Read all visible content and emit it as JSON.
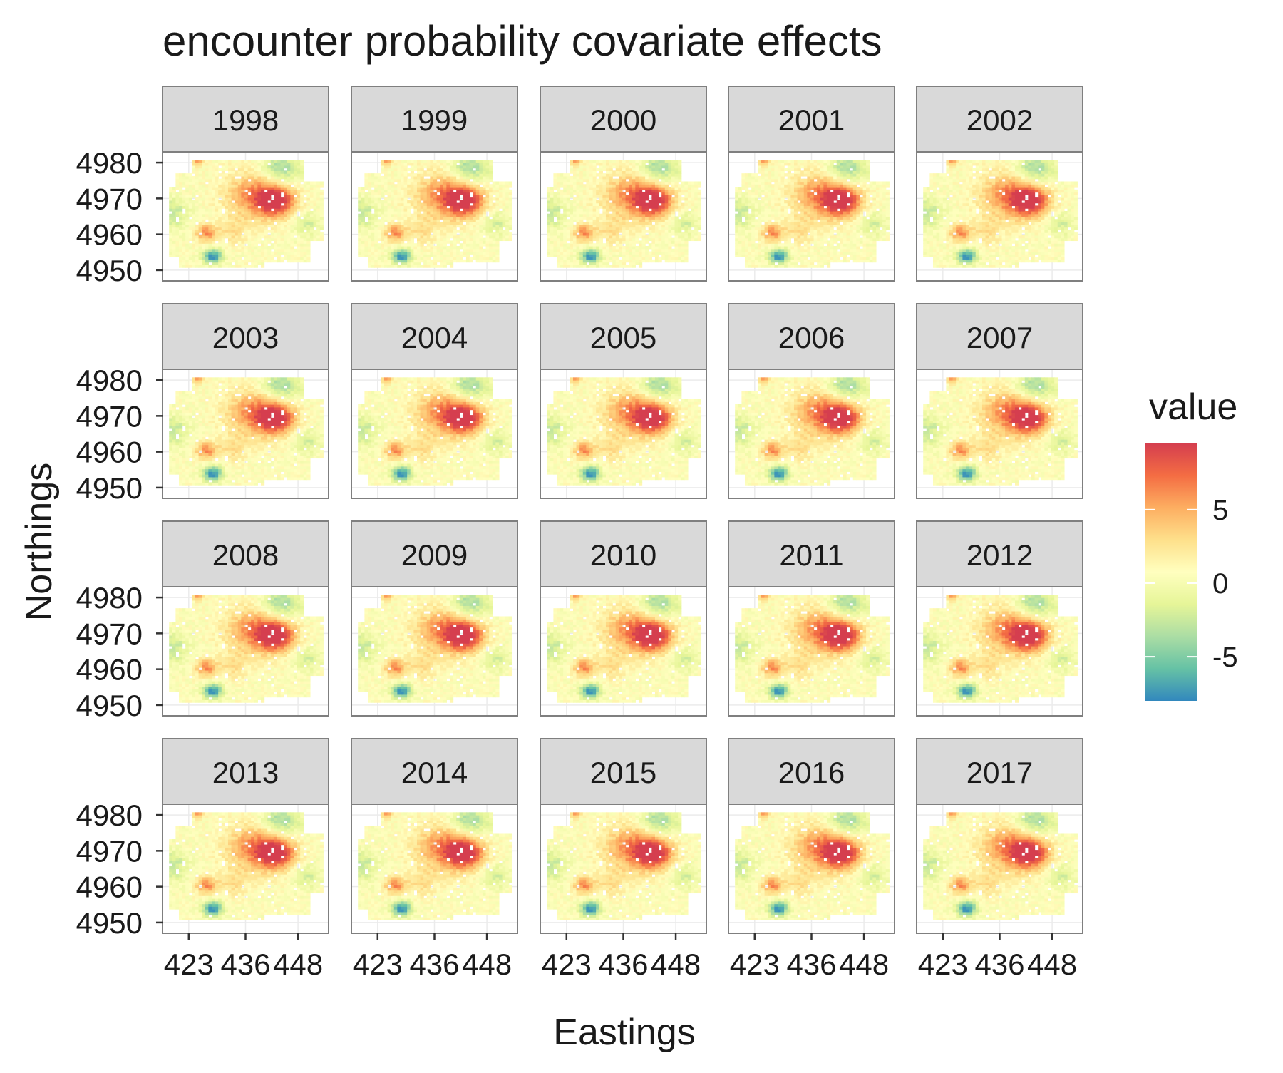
{
  "chart_data": {
    "type": "heatmap",
    "title": "encounter probability covariate effects",
    "xlabel": "Eastings",
    "ylabel": "Northings",
    "facets": [
      "1998",
      "1999",
      "2000",
      "2001",
      "2002",
      "2003",
      "2004",
      "2005",
      "2006",
      "2007",
      "2008",
      "2009",
      "2010",
      "2011",
      "2012",
      "2013",
      "2014",
      "2015",
      "2016",
      "2017"
    ],
    "x_ticks": [
      "423",
      "436",
      "448"
    ],
    "y_ticks": [
      "4980",
      "4970",
      "4960",
      "4950"
    ],
    "xlim": [
      417,
      455
    ],
    "ylim": [
      4947,
      4983
    ],
    "grid": true,
    "legend": {
      "title": "value",
      "ticks": [
        "5",
        "0",
        "-5"
      ],
      "tick_values": [
        5,
        0,
        -5
      ],
      "range": [
        -8,
        9.5
      ],
      "placement": "right"
    },
    "colors": {
      "strip_background": "#d9d9d9",
      "panel_border": "#7f7f7f",
      "grid": "#ebebeb",
      "scale": [
        "#3288bd",
        "#66c2a5",
        "#abdda4",
        "#e6f598",
        "#ffffbf",
        "#fee08b",
        "#fdae61",
        "#f46d43",
        "#d53e4f"
      ]
    }
  }
}
